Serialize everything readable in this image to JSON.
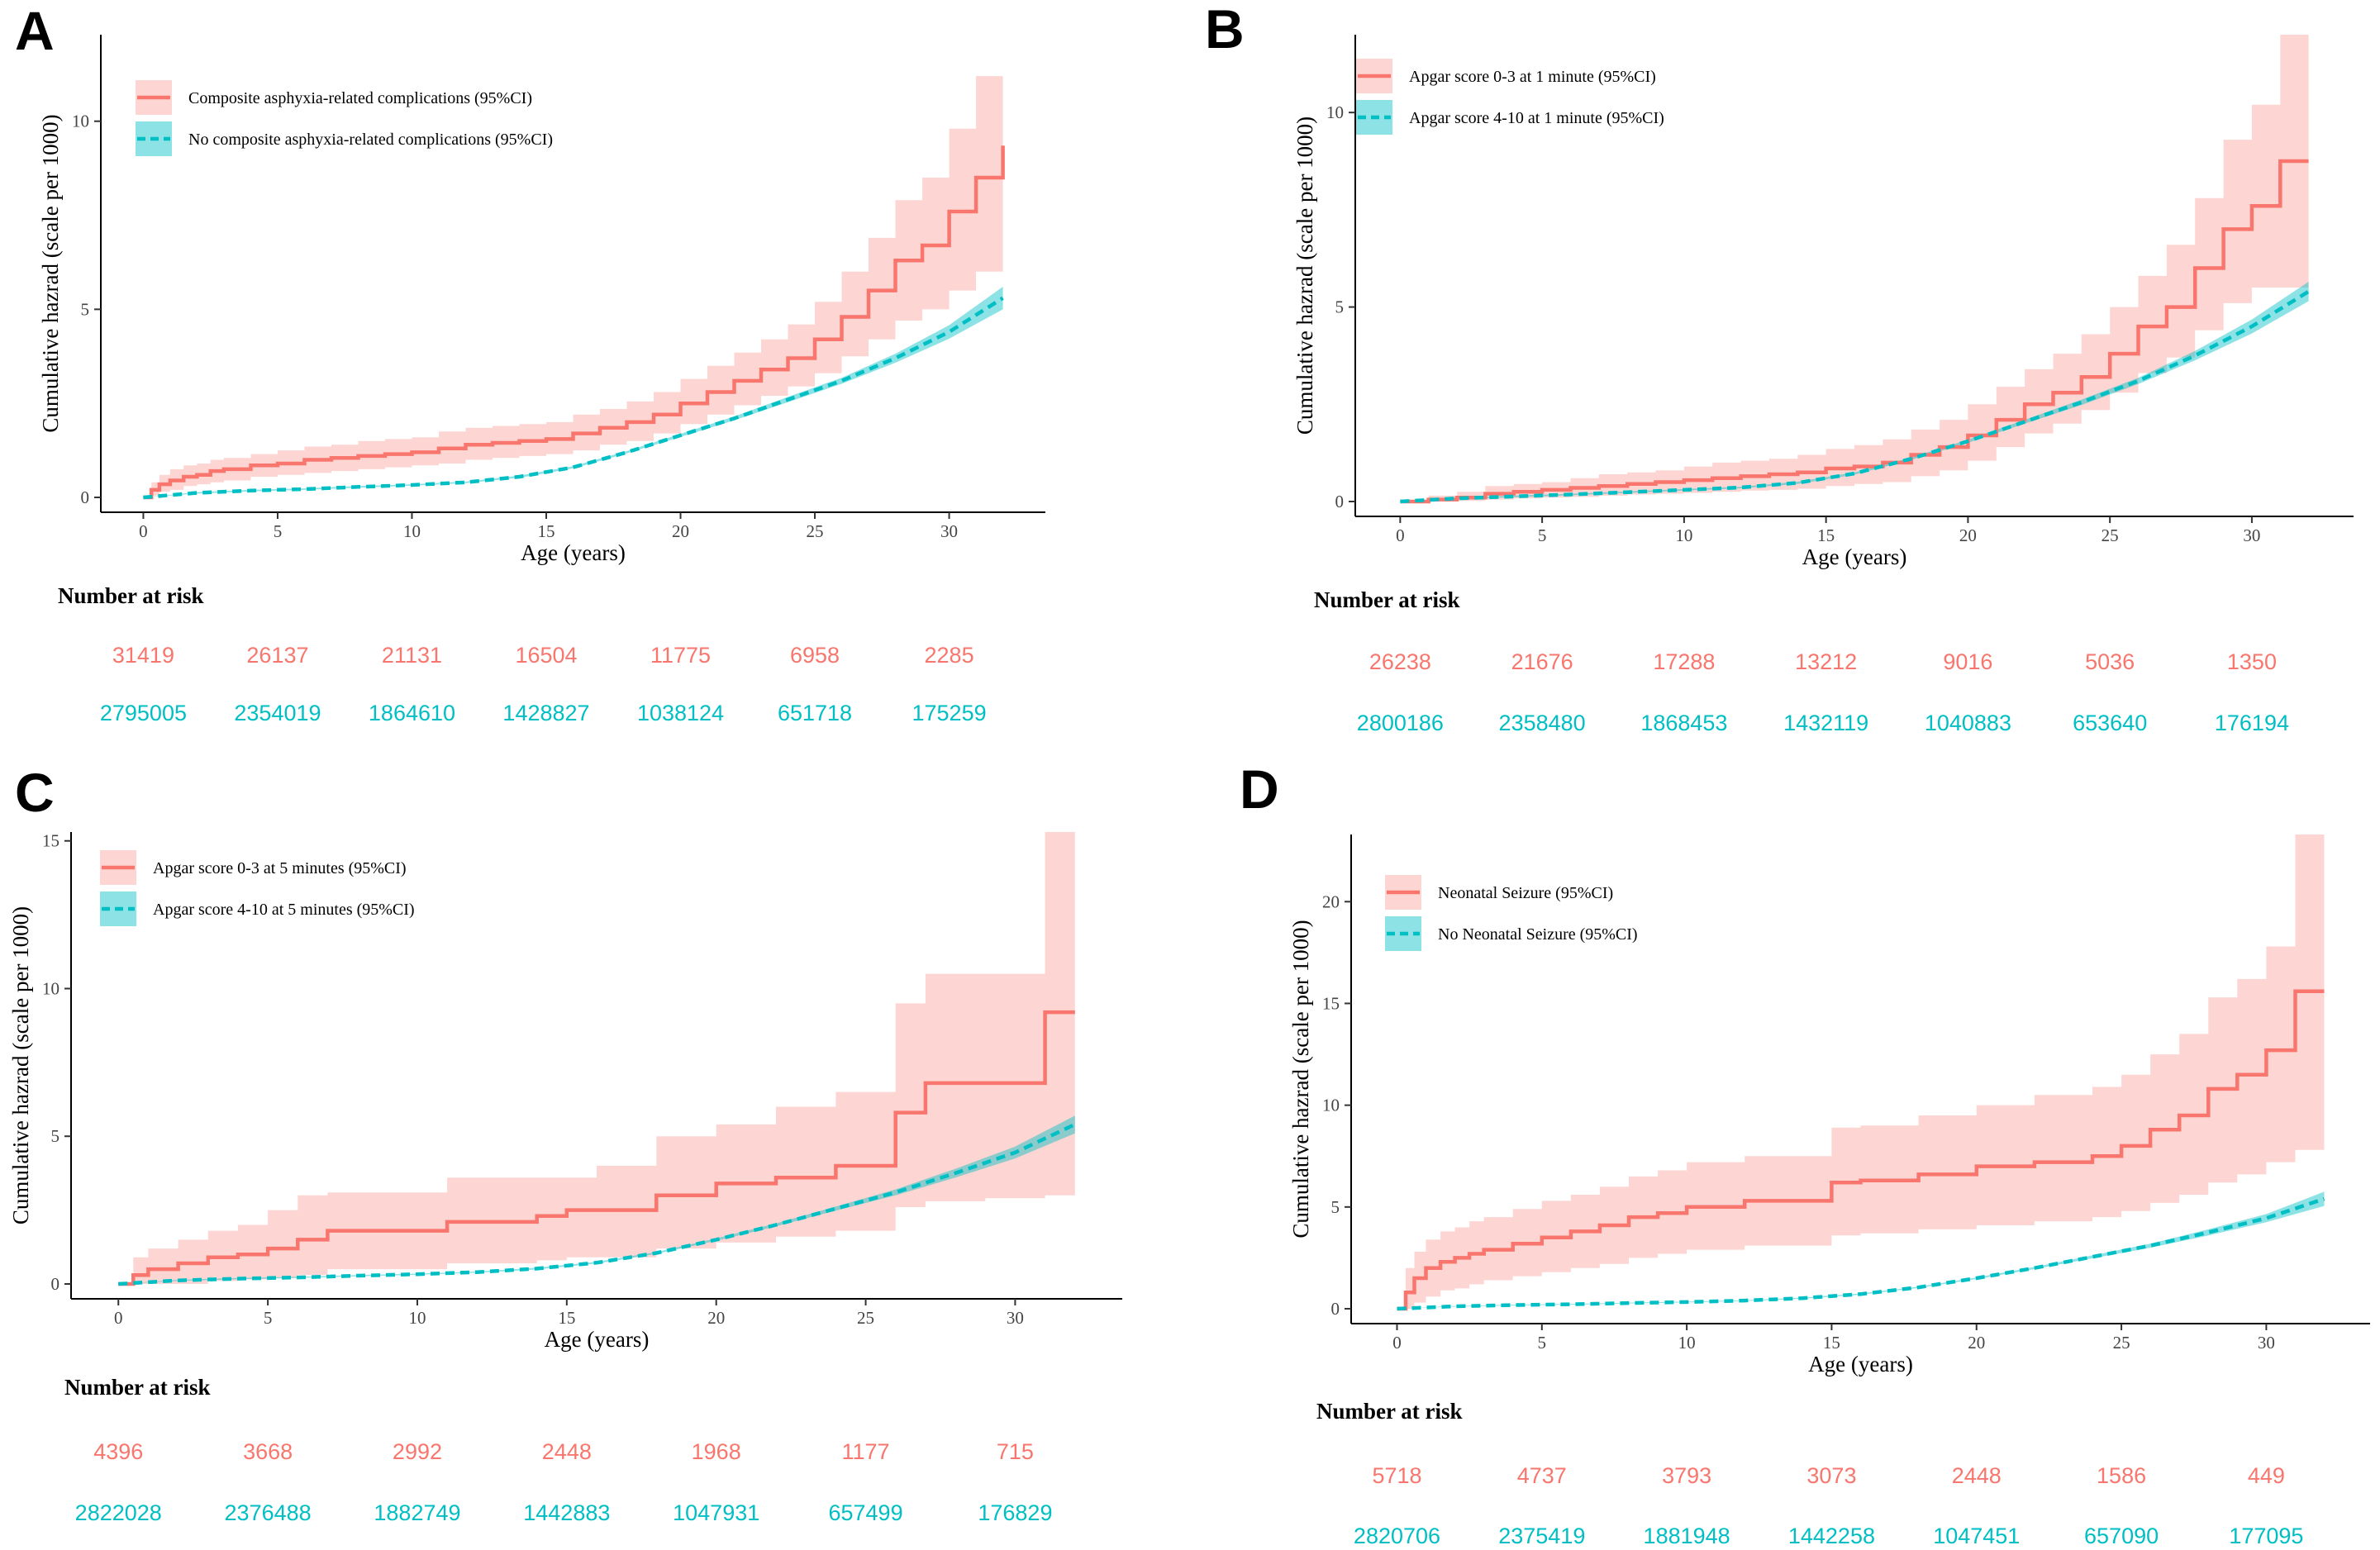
{
  "colors": {
    "series_a": "#F8766D",
    "series_a_band": "#F8766D",
    "series_b": "#00BFC4",
    "series_b_band": "#00BFC4"
  },
  "chart_data": [
    {
      "panel": "A",
      "type": "line",
      "title": "",
      "xlabel": "Age (years)",
      "ylabel": "Cumulative hazrad (scale per 1000)",
      "xlim": [
        0,
        32
      ],
      "ylim": [
        0,
        12.3
      ],
      "xticks": [
        0,
        5,
        10,
        15,
        20,
        25,
        30
      ],
      "yticks": [
        0,
        5,
        10
      ],
      "legend_position": "top-left",
      "series": [
        {
          "name": "Composite asphyxia-related complications (95%CI)",
          "style": "solid-step",
          "x": [
            0,
            0.3,
            0.6,
            1,
            1.5,
            2,
            2.5,
            3,
            4,
            5,
            6,
            7,
            8,
            9,
            10,
            11,
            12,
            13,
            14,
            15,
            16,
            17,
            18,
            19,
            20,
            21,
            22,
            23,
            24,
            25,
            26,
            27,
            28,
            29,
            30,
            31,
            32
          ],
          "y": [
            0,
            0.2,
            0.35,
            0.45,
            0.55,
            0.6,
            0.7,
            0.75,
            0.85,
            0.9,
            1.0,
            1.05,
            1.1,
            1.15,
            1.2,
            1.3,
            1.4,
            1.45,
            1.5,
            1.55,
            1.7,
            1.85,
            2.0,
            2.2,
            2.5,
            2.8,
            3.1,
            3.4,
            3.7,
            4.2,
            4.8,
            5.5,
            6.3,
            6.7,
            7.6,
            8.5,
            9.35
          ],
          "ci_low": [
            0,
            0.05,
            0.15,
            0.2,
            0.3,
            0.35,
            0.4,
            0.45,
            0.55,
            0.6,
            0.65,
            0.7,
            0.75,
            0.8,
            0.85,
            0.9,
            1.0,
            1.05,
            1.1,
            1.15,
            1.25,
            1.4,
            1.5,
            1.7,
            1.95,
            2.2,
            2.45,
            2.7,
            2.95,
            3.3,
            3.75,
            4.2,
            4.7,
            5.0,
            5.5,
            6.0,
            6.5
          ],
          "ci_high": [
            0,
            0.4,
            0.6,
            0.75,
            0.85,
            0.9,
            1.0,
            1.05,
            1.15,
            1.25,
            1.35,
            1.4,
            1.5,
            1.55,
            1.6,
            1.75,
            1.85,
            1.9,
            1.95,
            2.0,
            2.2,
            2.35,
            2.55,
            2.8,
            3.15,
            3.5,
            3.85,
            4.2,
            4.6,
            5.2,
            6.0,
            6.9,
            7.9,
            8.5,
            9.8,
            11.2,
            12.3
          ]
        },
        {
          "name": "No composite asphyxia-related complications (95%CI)",
          "style": "dashed",
          "x": [
            0,
            2,
            4,
            6,
            8,
            10,
            12,
            14,
            16,
            18,
            20,
            22,
            24,
            26,
            28,
            30,
            32
          ],
          "y": [
            0,
            0.12,
            0.18,
            0.22,
            0.28,
            0.33,
            0.4,
            0.55,
            0.8,
            1.2,
            1.65,
            2.1,
            2.6,
            3.1,
            3.7,
            4.4,
            5.3
          ],
          "ci_low": [
            0,
            0.1,
            0.16,
            0.2,
            0.26,
            0.31,
            0.38,
            0.52,
            0.77,
            1.17,
            1.61,
            2.05,
            2.53,
            3.02,
            3.58,
            4.22,
            5.0
          ],
          "ci_high": [
            0,
            0.14,
            0.2,
            0.24,
            0.3,
            0.35,
            0.42,
            0.58,
            0.83,
            1.23,
            1.69,
            2.15,
            2.67,
            3.18,
            3.82,
            4.58,
            5.6
          ]
        }
      ],
      "risk_table": {
        "title": "Number at risk",
        "times": [
          0,
          5,
          10,
          15,
          20,
          25,
          30
        ],
        "rows": [
          [
            "31419",
            "26137",
            "21131",
            "16504",
            "11775",
            "6958",
            "2285"
          ],
          [
            "2795005",
            "2354019",
            "1864610",
            "1428827",
            "1038124",
            "651718",
            "175259"
          ]
        ]
      }
    },
    {
      "panel": "B",
      "type": "line",
      "title": "",
      "xlabel": "Age (years)",
      "ylabel": "Cumulative hazrad (scale per 1000)",
      "xlim": [
        0,
        32
      ],
      "ylim": [
        0,
        12
      ],
      "xticks": [
        0,
        5,
        10,
        15,
        20,
        25,
        30
      ],
      "yticks": [
        0,
        5,
        10
      ],
      "legend_position": "top-left",
      "series": [
        {
          "name": "Apgar score 0-3 at 1 minute (95%CI)",
          "style": "solid-step",
          "x": [
            0,
            1,
            2,
            3,
            4,
            5,
            6,
            7,
            8,
            9,
            10,
            11,
            12,
            13,
            14,
            15,
            16,
            17,
            18,
            19,
            20,
            21,
            22,
            23,
            24,
            25,
            26,
            27,
            28,
            29,
            30,
            31,
            32
          ],
          "y": [
            0,
            0.05,
            0.1,
            0.2,
            0.25,
            0.3,
            0.35,
            0.4,
            0.45,
            0.5,
            0.55,
            0.6,
            0.65,
            0.7,
            0.75,
            0.85,
            0.9,
            1.0,
            1.2,
            1.4,
            1.7,
            2.1,
            2.5,
            2.8,
            3.2,
            3.8,
            4.5,
            5.0,
            6.0,
            7.0,
            7.6,
            8.75,
            8.75
          ],
          "ci_low": [
            0,
            0,
            0.02,
            0.05,
            0.08,
            0.1,
            0.12,
            0.15,
            0.18,
            0.2,
            0.22,
            0.25,
            0.28,
            0.3,
            0.33,
            0.4,
            0.45,
            0.5,
            0.65,
            0.8,
            1.05,
            1.4,
            1.75,
            2.0,
            2.35,
            2.8,
            3.3,
            3.7,
            4.4,
            5.1,
            5.5,
            5.5,
            5.5
          ],
          "ci_high": [
            0,
            0.15,
            0.25,
            0.4,
            0.45,
            0.5,
            0.6,
            0.7,
            0.75,
            0.8,
            0.9,
            1.0,
            1.05,
            1.1,
            1.2,
            1.35,
            1.45,
            1.6,
            1.85,
            2.1,
            2.5,
            2.95,
            3.4,
            3.8,
            4.3,
            5.0,
            5.8,
            6.6,
            7.8,
            9.3,
            10.2,
            12.0,
            12.0
          ]
        },
        {
          "name": "Apgar score 4-10 at 1 minute  (95%CI)",
          "style": "dashed",
          "x": [
            0,
            2,
            4,
            6,
            8,
            10,
            12,
            14,
            16,
            18,
            20,
            22,
            24,
            26,
            28,
            30,
            32
          ],
          "y": [
            0,
            0.08,
            0.13,
            0.18,
            0.24,
            0.3,
            0.36,
            0.48,
            0.72,
            1.1,
            1.55,
            2.05,
            2.55,
            3.1,
            3.75,
            4.5,
            5.4
          ],
          "ci_low": [
            0,
            0.06,
            0.11,
            0.16,
            0.22,
            0.28,
            0.34,
            0.45,
            0.69,
            1.07,
            1.51,
            2.0,
            2.48,
            3.02,
            3.63,
            4.32,
            5.15
          ],
          "ci_high": [
            0,
            0.1,
            0.15,
            0.2,
            0.26,
            0.32,
            0.38,
            0.51,
            0.75,
            1.13,
            1.59,
            2.1,
            2.62,
            3.18,
            3.87,
            4.68,
            5.65
          ]
        }
      ],
      "risk_table": {
        "title": "Number at risk",
        "times": [
          0,
          5,
          10,
          15,
          20,
          25,
          30
        ],
        "rows": [
          [
            "26238",
            "21676",
            "17288",
            "13212",
            "9016",
            "5036",
            "1350"
          ],
          [
            "2800186",
            "2358480",
            "1868453",
            "1432119",
            "1040883",
            "653640",
            "176194"
          ]
        ]
      }
    },
    {
      "panel": "C",
      "type": "line",
      "title": "",
      "xlabel": "Age (years)",
      "ylabel": "Cumulative hazrad (scale per 1000)",
      "xlim": [
        0,
        32
      ],
      "ylim": [
        0,
        15.3
      ],
      "xticks": [
        0,
        5,
        10,
        15,
        20,
        25,
        30
      ],
      "yticks": [
        0,
        5,
        10,
        15
      ],
      "legend_position": "top-left",
      "series": [
        {
          "name": "Apgar score 0-3 at 5 minutes (95%CI)",
          "style": "solid-step",
          "x": [
            0,
            0.5,
            1,
            2,
            3,
            4,
            5,
            6,
            7,
            8,
            11,
            14,
            15,
            16,
            17,
            18,
            19,
            20,
            21,
            22,
            23,
            24,
            25,
            26,
            27,
            28,
            29,
            30,
            31,
            32
          ],
          "y": [
            0,
            0.3,
            0.5,
            0.7,
            0.9,
            1.0,
            1.2,
            1.5,
            1.8,
            1.8,
            2.1,
            2.3,
            2.5,
            2.5,
            2.5,
            3.0,
            3.0,
            3.4,
            3.4,
            3.6,
            3.6,
            4.0,
            4.0,
            5.8,
            6.8,
            6.8,
            6.8,
            6.8,
            9.2,
            9.2
          ],
          "ci_low": [
            0,
            0,
            0,
            0,
            0.1,
            0.15,
            0.2,
            0.3,
            0.5,
            0.5,
            0.7,
            0.8,
            0.9,
            0.9,
            0.9,
            1.2,
            1.2,
            1.4,
            1.4,
            1.6,
            1.6,
            1.8,
            1.8,
            2.6,
            2.8,
            2.8,
            2.9,
            2.9,
            3.0,
            3.0
          ],
          "ci_high": [
            0,
            0.9,
            1.2,
            1.5,
            1.8,
            2.0,
            2.5,
            3.0,
            3.1,
            3.1,
            3.6,
            3.6,
            3.6,
            4.0,
            4.0,
            5.0,
            5.0,
            5.4,
            5.4,
            6.0,
            6.0,
            6.5,
            6.5,
            9.5,
            10.5,
            10.5,
            10.5,
            10.5,
            15.3,
            15.3
          ]
        },
        {
          "name": "Apgar score 4-10 at 5 minutes  (95%CI)",
          "style": "dashed",
          "x": [
            0,
            2,
            4,
            6,
            8,
            10,
            12,
            14,
            16,
            18,
            20,
            22,
            24,
            26,
            28,
            30,
            32
          ],
          "y": [
            0,
            0.12,
            0.18,
            0.22,
            0.28,
            0.33,
            0.4,
            0.52,
            0.72,
            1.05,
            1.5,
            2.0,
            2.55,
            3.1,
            3.75,
            4.45,
            5.4
          ],
          "ci_low": [
            0,
            0.1,
            0.16,
            0.2,
            0.26,
            0.31,
            0.38,
            0.49,
            0.69,
            1.02,
            1.46,
            1.95,
            2.48,
            3.0,
            3.6,
            4.25,
            5.1
          ],
          "ci_high": [
            0,
            0.14,
            0.2,
            0.24,
            0.3,
            0.35,
            0.42,
            0.55,
            0.75,
            1.08,
            1.54,
            2.05,
            2.62,
            3.2,
            3.9,
            4.65,
            5.7
          ]
        }
      ],
      "risk_table": {
        "title": "Number at risk",
        "times": [
          0,
          5,
          10,
          15,
          20,
          25,
          30
        ],
        "rows": [
          [
            "4396",
            "3668",
            "2992",
            "2448",
            "1968",
            "1177",
            "715"
          ],
          [
            "2822028",
            "2376488",
            "1882749",
            "1442883",
            "1047931",
            "657499",
            "176829"
          ]
        ]
      }
    },
    {
      "panel": "D",
      "type": "line",
      "title": "",
      "xlabel": "Age (years)",
      "ylabel": "Cumulative hazrad (scale per 1000)",
      "xlim": [
        0,
        32
      ],
      "ylim": [
        0,
        23.3
      ],
      "xticks": [
        0,
        5,
        10,
        15,
        20,
        25,
        30
      ],
      "yticks": [
        0,
        5,
        10,
        15,
        20
      ],
      "legend_position": "top-left",
      "series": [
        {
          "name": "Neonatal Seizure (95%CI)",
          "style": "solid-step",
          "x": [
            0,
            0.3,
            0.6,
            1,
            1.5,
            2,
            2.5,
            3,
            4,
            5,
            6,
            7,
            8,
            9,
            10,
            12,
            14,
            15,
            16,
            18,
            20,
            22,
            24,
            25,
            26,
            27,
            28,
            29,
            30,
            31,
            32
          ],
          "y": [
            0,
            0.8,
            1.5,
            2.0,
            2.3,
            2.5,
            2.7,
            2.9,
            3.2,
            3.5,
            3.8,
            4.1,
            4.5,
            4.7,
            5.0,
            5.3,
            5.3,
            6.2,
            6.3,
            6.6,
            7.0,
            7.2,
            7.5,
            8.0,
            8.8,
            9.5,
            10.8,
            11.5,
            12.7,
            15.6,
            15.6
          ],
          "ci_low": [
            0,
            0,
            0.3,
            0.6,
            0.9,
            1.0,
            1.2,
            1.4,
            1.6,
            1.8,
            2.0,
            2.2,
            2.5,
            2.7,
            2.9,
            3.1,
            3.1,
            3.6,
            3.7,
            3.9,
            4.1,
            4.3,
            4.5,
            4.8,
            5.2,
            5.6,
            6.2,
            6.6,
            7.2,
            7.8,
            7.8
          ],
          "ci_high": [
            0,
            2.0,
            2.8,
            3.4,
            3.8,
            4.0,
            4.3,
            4.5,
            4.9,
            5.3,
            5.6,
            6.0,
            6.5,
            6.8,
            7.2,
            7.5,
            7.5,
            8.9,
            9.0,
            9.5,
            10.0,
            10.5,
            10.9,
            11.5,
            12.5,
            13.5,
            15.3,
            16.2,
            17.8,
            23.3,
            23.3
          ]
        },
        {
          "name": "No Neonatal Seizure  (95%CI)",
          "style": "dashed",
          "x": [
            0,
            2,
            4,
            6,
            8,
            10,
            12,
            14,
            16,
            18,
            20,
            22,
            24,
            26,
            28,
            30,
            32
          ],
          "y": [
            0,
            0.12,
            0.18,
            0.22,
            0.28,
            0.33,
            0.4,
            0.52,
            0.72,
            1.05,
            1.5,
            2.0,
            2.55,
            3.1,
            3.75,
            4.45,
            5.4
          ],
          "ci_low": [
            0,
            0.1,
            0.16,
            0.2,
            0.26,
            0.31,
            0.38,
            0.49,
            0.69,
            1.02,
            1.46,
            1.95,
            2.48,
            3.0,
            3.6,
            4.25,
            5.05
          ],
          "ci_high": [
            0,
            0.14,
            0.2,
            0.24,
            0.3,
            0.35,
            0.42,
            0.55,
            0.75,
            1.08,
            1.54,
            2.05,
            2.62,
            3.2,
            3.9,
            4.65,
            5.75
          ]
        }
      ],
      "risk_table": {
        "title": "Number at risk",
        "times": [
          0,
          5,
          10,
          15,
          20,
          25,
          30
        ],
        "rows": [
          [
            "5718",
            "4737",
            "3793",
            "3073",
            "2448",
            "1586",
            "449"
          ],
          [
            "2820706",
            "2375419",
            "1881948",
            "1442258",
            "1047451",
            "657090",
            "177095"
          ]
        ]
      }
    }
  ]
}
